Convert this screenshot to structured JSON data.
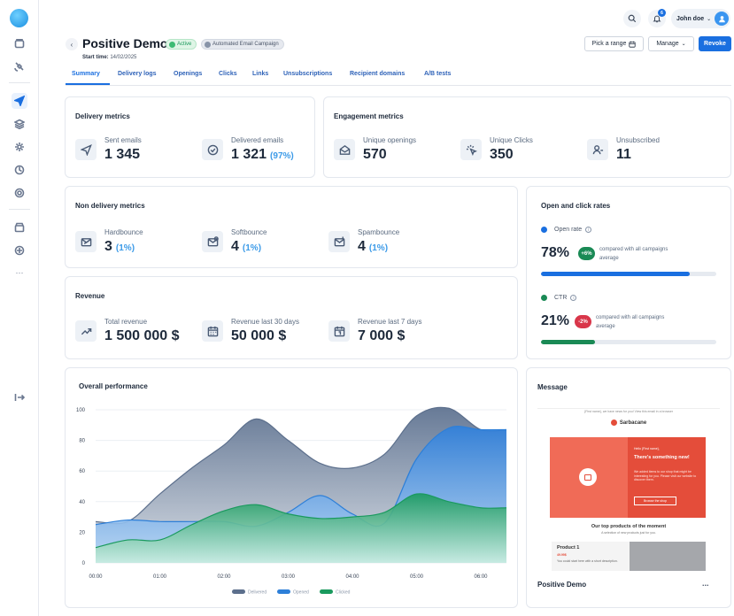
{
  "header": {
    "user_name": "John doe",
    "notification_count": "6"
  },
  "page": {
    "title": "Positive Demo",
    "status": "Active",
    "campaign_type": "Automated Email Campaign",
    "start_time_label": "Start time:",
    "start_time": "14/02/2025"
  },
  "actions": {
    "pick_range": "Pick a range",
    "manage": "Manage",
    "revoke": "Revoke"
  },
  "tabs": [
    "Summary",
    "Delivery logs",
    "Openings",
    "Clicks",
    "Links",
    "Unsubscriptions",
    "Recipient domains",
    "A/B tests"
  ],
  "delivery": {
    "title": "Delivery metrics",
    "sent_label": "Sent emails",
    "sent_value": "1 345",
    "delivered_label": "Delivered emails",
    "delivered_value": "1 321",
    "delivered_pct": "(97%)"
  },
  "engagement": {
    "title": "Engagement metrics",
    "openings_label": "Unique openings",
    "openings_value": "570",
    "clicks_label": "Unique Clicks",
    "clicks_value": "350",
    "unsub_label": "Unsubscribed",
    "unsub_value": "11"
  },
  "non_delivery": {
    "title": "Non delivery metrics",
    "hard_label": "Hardbounce",
    "hard_value": "3",
    "hard_pct": "(1%)",
    "soft_label": "Softbounce",
    "soft_value": "4",
    "soft_pct": "(1%)",
    "spam_label": "Spambounce",
    "spam_value": "4",
    "spam_pct": "(1%)"
  },
  "revenue": {
    "title": "Revenue",
    "total_label": "Total revenue",
    "total_value": "1 500 000 $",
    "last30_label": "Revenue last 30 days",
    "last30_value": "50 000 $",
    "last7_label": "Revenue last 7 days",
    "last7_value": "7 000 $"
  },
  "rates": {
    "title": "Open and click rates",
    "open_label": "Open rate",
    "open_value": "78%",
    "open_delta": "+6%",
    "open_compare": "compared with all campaigns average",
    "open_fill": 0.85,
    "ctr_label": "CTR",
    "ctr_value": "21%",
    "ctr_delta": "-2%",
    "ctr_compare": "compared with all campaigns average",
    "ctr_fill": 0.31,
    "colors": {
      "open": "#1a6fe0",
      "ctr": "#1a8a55",
      "pos": "#1a8a55",
      "neg": "#d9364a"
    }
  },
  "performance": {
    "title": "Overall performance"
  },
  "chart_data": {
    "type": "area",
    "title": "Overall performance",
    "x": [
      "00:00",
      "01:00",
      "02:00",
      "03:00",
      "04:00",
      "05:00",
      "06:00"
    ],
    "ylim": [
      0,
      100
    ],
    "yticks": [
      0,
      20,
      40,
      60,
      80,
      100
    ],
    "grid": true,
    "legend_position": "bottom",
    "series": [
      {
        "name": "Delivered",
        "color": "#5c6f8c",
        "points": [
          [
            0,
            27
          ],
          [
            0.5,
            27
          ],
          [
            1,
            45
          ],
          [
            1.5,
            62
          ],
          [
            2,
            77
          ],
          [
            2.5,
            94
          ],
          [
            3,
            80
          ],
          [
            3.5,
            65
          ],
          [
            4,
            62
          ],
          [
            4.5,
            71
          ],
          [
            5,
            96
          ],
          [
            5.5,
            101
          ],
          [
            6,
            87
          ],
          [
            6.4,
            87
          ]
        ]
      },
      {
        "name": "Opened",
        "color": "#2d7fd8",
        "points": [
          [
            0,
            25
          ],
          [
            0.5,
            28
          ],
          [
            1,
            27
          ],
          [
            1.5,
            27
          ],
          [
            2,
            27
          ],
          [
            2.5,
            24
          ],
          [
            3,
            33
          ],
          [
            3.5,
            44
          ],
          [
            4,
            32
          ],
          [
            4.5,
            26
          ],
          [
            5,
            68
          ],
          [
            5.5,
            88
          ],
          [
            6,
            87
          ],
          [
            6.4,
            87
          ]
        ]
      },
      {
        "name": "Clicked",
        "color": "#1a9a5e",
        "points": [
          [
            0,
            10
          ],
          [
            0.5,
            15
          ],
          [
            1,
            15
          ],
          [
            1.5,
            25
          ],
          [
            2,
            34
          ],
          [
            2.5,
            38
          ],
          [
            3,
            32
          ],
          [
            3.5,
            29
          ],
          [
            4,
            30
          ],
          [
            4.5,
            33
          ],
          [
            5,
            45
          ],
          [
            5.5,
            40
          ],
          [
            6,
            36
          ],
          [
            6.4,
            36
          ]
        ]
      }
    ]
  },
  "message": {
    "title": "Message",
    "campaign_name": "Positive Demo",
    "more": "...",
    "email_top_note": "{First name}, we have news for you! View this email in a browser",
    "brand": "Sarbacane",
    "hero_greeting": "Hello {First name},",
    "hero_heading": "There's something new!",
    "hero_body": "We added items to our shop that might be interesting for you. Please visit our website to discover them.",
    "hero_cta": "Browse the shop",
    "products_title": "Our top products of the moment",
    "products_sub": "A selection of new products just for you.",
    "product_name": "Product 1",
    "product_price": "49.99$",
    "product_desc": "You could start here with a short description."
  }
}
